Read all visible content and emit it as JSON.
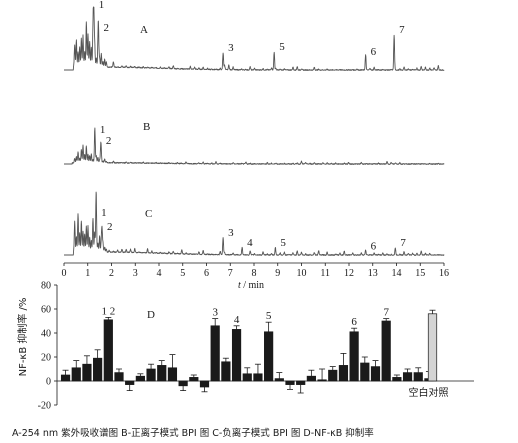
{
  "chart_data": [
    {
      "type": "line",
      "panel_label": "A",
      "x_range": [
        0,
        16
      ],
      "peaks": [
        {
          "label": "1",
          "x": 1.25,
          "h": 1.0
        },
        {
          "label": "2",
          "x": 1.45,
          "h": 0.62
        },
        {
          "label": "3",
          "x": 6.7,
          "h": 0.28
        },
        {
          "label": "5",
          "x": 8.85,
          "h": 0.3
        },
        {
          "label": "6",
          "x": 12.7,
          "h": 0.22
        },
        {
          "label": "7",
          "x": 13.9,
          "h": 0.58
        }
      ]
    },
    {
      "type": "line",
      "panel_label": "B",
      "x_range": [
        0,
        16
      ],
      "peaks": [
        {
          "label": "1",
          "x": 1.3,
          "h": 0.48
        },
        {
          "label": "2",
          "x": 1.55,
          "h": 0.3
        }
      ]
    },
    {
      "type": "line",
      "panel_label": "C",
      "x_range": [
        0,
        16
      ],
      "peaks": [
        {
          "label": "1",
          "x": 1.35,
          "h": 0.62
        },
        {
          "label": "2",
          "x": 1.6,
          "h": 0.38
        },
        {
          "label": "3",
          "x": 6.7,
          "h": 0.28
        },
        {
          "label": "4",
          "x": 7.5,
          "h": 0.12
        },
        {
          "label": "5",
          "x": 8.9,
          "h": 0.12
        },
        {
          "label": "6",
          "x": 12.7,
          "h": 0.06
        },
        {
          "label": "7",
          "x": 13.95,
          "h": 0.12
        }
      ],
      "x_ticks": [
        0,
        1,
        2,
        3,
        4,
        5,
        6,
        7,
        8,
        9,
        10,
        11,
        12,
        13,
        14,
        15,
        16
      ],
      "xlabel_italic": "t",
      "xlabel_rest": " / min"
    },
    {
      "type": "bar",
      "panel_label": "D",
      "ylabel": "NF-κB 抑制率 /%",
      "ylim": [
        -20,
        80
      ],
      "y_ticks": [
        -20,
        0,
        20,
        40,
        60,
        80
      ],
      "x_range": [
        0,
        16
      ],
      "control_label": "空白对照",
      "control": {
        "x": 15.6,
        "value": 56,
        "err": 3
      },
      "bars": [
        {
          "x": 0.15,
          "value": 5,
          "err": 4
        },
        {
          "x": 0.6,
          "value": 11,
          "err": 6
        },
        {
          "x": 1.05,
          "value": 14,
          "err": 7
        },
        {
          "x": 1.5,
          "value": 19,
          "err": 7
        },
        {
          "x": 1.95,
          "value": 51,
          "err": 2,
          "label": "1 2"
        },
        {
          "x": 2.4,
          "value": 7,
          "err": 3
        },
        {
          "x": 2.85,
          "value": -3,
          "err": 5
        },
        {
          "x": 3.3,
          "value": 4,
          "err": 2
        },
        {
          "x": 3.75,
          "value": 10,
          "err": 4
        },
        {
          "x": 4.2,
          "value": 13,
          "err": 4
        },
        {
          "x": 4.65,
          "value": 11,
          "err": 11
        },
        {
          "x": 5.1,
          "value": -4,
          "err": 4
        },
        {
          "x": 5.55,
          "value": 3,
          "err": 2
        },
        {
          "x": 6.0,
          "value": -5,
          "err": 4
        },
        {
          "x": 6.45,
          "value": 46,
          "err": 6,
          "label": "3"
        },
        {
          "x": 6.9,
          "value": 16,
          "err": 3
        },
        {
          "x": 7.35,
          "value": 43,
          "err": 3,
          "label": "4"
        },
        {
          "x": 7.8,
          "value": 6,
          "err": 5
        },
        {
          "x": 8.25,
          "value": 6,
          "err": 8
        },
        {
          "x": 8.7,
          "value": 41,
          "err": 8,
          "label": "5"
        },
        {
          "x": 9.15,
          "value": 2,
          "err": 5
        },
        {
          "x": 9.6,
          "value": -3,
          "err": 4
        },
        {
          "x": 10.05,
          "value": -3,
          "err": 7
        },
        {
          "x": 10.5,
          "value": 4,
          "err": 5
        },
        {
          "x": 10.95,
          "value": 1,
          "err": 9
        },
        {
          "x": 11.4,
          "value": 9,
          "err": 3
        },
        {
          "x": 11.85,
          "value": 13,
          "err": 10
        },
        {
          "x": 12.3,
          "value": 41,
          "err": 3,
          "label": "6"
        },
        {
          "x": 12.75,
          "value": 15,
          "err": 5
        },
        {
          "x": 13.2,
          "value": 12,
          "err": 5
        },
        {
          "x": 13.65,
          "value": 50,
          "err": 2,
          "label": "7"
        },
        {
          "x": 14.1,
          "value": 3,
          "err": 2
        },
        {
          "x": 14.55,
          "value": 7,
          "err": 3
        },
        {
          "x": 15.0,
          "value": 7,
          "err": 4
        },
        {
          "x": 15.45,
          "value": 2,
          "err": 6
        }
      ]
    }
  ],
  "caption": "A-254 nm 紫外吸收谱图   B-正离子模式 BPI 图   C-负离子模式 BPI 图   D-NF-κB 抑制率"
}
